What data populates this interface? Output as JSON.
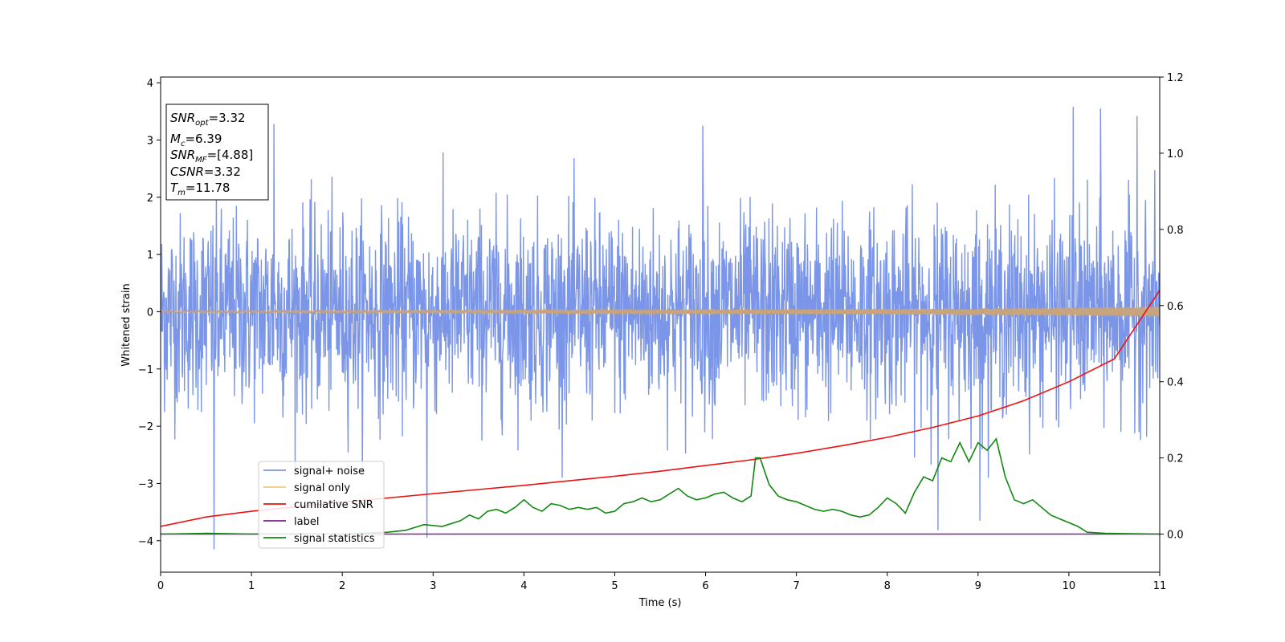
{
  "chart_data": {
    "type": "line",
    "title": "",
    "xlabel": "Time (s)",
    "ylabel": "Whitened strain",
    "xlim": [
      0,
      11
    ],
    "ylim": [
      -4.55,
      4.1
    ],
    "y2lim": [
      -0.1,
      1.2
    ],
    "xticks": [
      0,
      1,
      2,
      3,
      4,
      5,
      6,
      7,
      8,
      9,
      10,
      11
    ],
    "yticks": [
      -4,
      -3,
      -2,
      -1,
      0,
      1,
      2,
      3,
      4
    ],
    "y2ticks": [
      "0.0",
      "0.2",
      "0.4",
      "0.6",
      "0.8",
      "1.0",
      "1.2"
    ],
    "grid": false,
    "legend_position": "lower-left",
    "info_box": {
      "lines": [
        {
          "sym": "SNR",
          "sub": "opt",
          "val": "=3.32"
        },
        {
          "sym": "M",
          "sub": "c",
          "val": "=6.39"
        },
        {
          "sym": "SNR",
          "sub": "MF",
          "val": "=[4.88]"
        },
        {
          "sym": "CSNR",
          "sub": "",
          "val": "=3.32"
        },
        {
          "sym": "T",
          "sub": "m",
          "val": "=11.78"
        }
      ]
    },
    "series": [
      {
        "name": "signal+ noise",
        "color": "#7b96e8",
        "axis": "left",
        "kind": "noise",
        "std": 0.85,
        "peaks": [
          {
            "x": 0.59,
            "y": -4.15
          },
          {
            "x": 1.25,
            "y": 3.28
          },
          {
            "x": 2.93,
            "y": -3.95
          },
          {
            "x": 5.97,
            "y": 3.25
          },
          {
            "x": 8.56,
            "y": -3.82
          },
          {
            "x": 9.02,
            "y": -3.65
          },
          {
            "x": 10.05,
            "y": 3.58
          },
          {
            "x": 10.35,
            "y": 3.55
          },
          {
            "x": 10.75,
            "y": 3.42
          }
        ]
      },
      {
        "name": "signal only",
        "color": "#f5c77e",
        "axis": "left",
        "kind": "chirp",
        "amp_start": 0.02,
        "amp_end": 0.09
      },
      {
        "name": "cumilative SNR",
        "color": "#ee1111",
        "axis": "right",
        "x": [
          0,
          0.5,
          1,
          1.5,
          2,
          2.5,
          3,
          3.5,
          4,
          4.5,
          5,
          5.5,
          6,
          6.5,
          7,
          7.5,
          8,
          8.5,
          9,
          9.5,
          10,
          10.5,
          11
        ],
        "values": [
          0.02,
          0.045,
          0.06,
          0.072,
          0.084,
          0.095,
          0.106,
          0.117,
          0.128,
          0.14,
          0.152,
          0.165,
          0.18,
          0.195,
          0.212,
          0.232,
          0.254,
          0.28,
          0.31,
          0.35,
          0.4,
          0.46,
          0.64
        ]
      },
      {
        "name": "label",
        "color": "#7b2191",
        "axis": "right",
        "x": [
          0,
          11
        ],
        "values": [
          0.0,
          0.0
        ]
      },
      {
        "name": "signal statistics",
        "color": "#118811",
        "axis": "right",
        "x": [
          0,
          0.5,
          1,
          1.5,
          2,
          2.5,
          2.7,
          2.9,
          3.1,
          3.3,
          3.4,
          3.5,
          3.6,
          3.7,
          3.8,
          3.9,
          4.0,
          4.1,
          4.2,
          4.3,
          4.4,
          4.5,
          4.6,
          4.7,
          4.8,
          4.9,
          5.0,
          5.1,
          5.2,
          5.3,
          5.4,
          5.5,
          5.6,
          5.7,
          5.8,
          5.9,
          6.0,
          6.1,
          6.2,
          6.3,
          6.4,
          6.5,
          6.55,
          6.6,
          6.7,
          6.8,
          6.9,
          7.0,
          7.1,
          7.2,
          7.3,
          7.4,
          7.5,
          7.6,
          7.7,
          7.8,
          7.9,
          8.0,
          8.1,
          8.2,
          8.3,
          8.4,
          8.5,
          8.6,
          8.7,
          8.8,
          8.9,
          9.0,
          9.1,
          9.2,
          9.3,
          9.4,
          9.5,
          9.6,
          9.7,
          9.8,
          9.9,
          10.0,
          10.1,
          10.2,
          10.4,
          10.7,
          11
        ],
        "values": [
          0.0,
          0.002,
          0.0,
          0.001,
          0.0,
          0.005,
          0.01,
          0.025,
          0.02,
          0.035,
          0.05,
          0.04,
          0.06,
          0.065,
          0.055,
          0.07,
          0.09,
          0.07,
          0.06,
          0.08,
          0.075,
          0.065,
          0.07,
          0.065,
          0.07,
          0.055,
          0.06,
          0.08,
          0.085,
          0.095,
          0.085,
          0.09,
          0.105,
          0.12,
          0.1,
          0.09,
          0.095,
          0.105,
          0.11,
          0.095,
          0.085,
          0.1,
          0.2,
          0.2,
          0.13,
          0.1,
          0.09,
          0.085,
          0.075,
          0.065,
          0.06,
          0.065,
          0.06,
          0.05,
          0.045,
          0.05,
          0.07,
          0.095,
          0.08,
          0.055,
          0.11,
          0.15,
          0.14,
          0.2,
          0.19,
          0.24,
          0.19,
          0.24,
          0.22,
          0.25,
          0.15,
          0.09,
          0.08,
          0.09,
          0.07,
          0.05,
          0.04,
          0.03,
          0.02,
          0.005,
          0.002,
          0.001,
          0.0
        ]
      }
    ]
  }
}
